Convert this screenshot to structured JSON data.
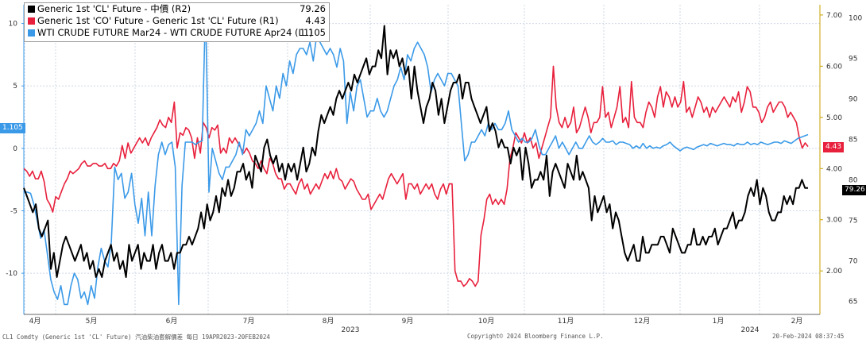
{
  "chart_data": {
    "type": "line",
    "x_axis": {
      "month_labels": [
        "4月",
        "5月",
        "6月",
        "7月",
        "8月",
        "9月",
        "10月",
        "11月",
        "12月",
        "1月",
        "2月"
      ],
      "year_labels": [
        "2023",
        "2024"
      ]
    },
    "left_axis": {
      "ticks": [
        10,
        5,
        0,
        -5,
        -10
      ],
      "ylim": [
        -13.3,
        11.5
      ]
    },
    "right_axis_r1": {
      "ticks": [
        100,
        95,
        90,
        85,
        80,
        75,
        70,
        65
      ],
      "ylim": [
        63.4,
        101.6
      ]
    },
    "right_axis_r2": {
      "ticks": [
        "7.00",
        "6.00",
        "5.00",
        "4.00",
        "3.00",
        "2.00"
      ],
      "ylim": [
        1.15,
        7.2
      ]
    },
    "series": [
      {
        "name": "Generic 1st 'CL' Future - 中價 (R2)",
        "legend_value": "79.26",
        "axis": "r1",
        "color": "#000000",
        "values": [
          79,
          78,
          77,
          76,
          77,
          74,
          73,
          74,
          75,
          69,
          71,
          68,
          70,
          72,
          73,
          72,
          71,
          70,
          71,
          72,
          70,
          71,
          69,
          70,
          68,
          69,
          68,
          70,
          71,
          72,
          70,
          71,
          69,
          70,
          68,
          72,
          70,
          71,
          72,
          69,
          71,
          70,
          70,
          72,
          69,
          71,
          72,
          70,
          70,
          71,
          69,
          71,
          71,
          72,
          72,
          73,
          72,
          73,
          74,
          76,
          74,
          77,
          75,
          76,
          78,
          76,
          79,
          78,
          80,
          78,
          79,
          81,
          81,
          82,
          80,
          81,
          79,
          83,
          82,
          81,
          84,
          85,
          83,
          82,
          83,
          81,
          82,
          80,
          82,
          81,
          82,
          80,
          82,
          84,
          81,
          82,
          84,
          83,
          86,
          88,
          87,
          88,
          89,
          88,
          90,
          91,
          90,
          91,
          92,
          91,
          93,
          92,
          93,
          94,
          95,
          93,
          94,
          94,
          96,
          95,
          99,
          93,
          96,
          95,
          96,
          94,
          95,
          93,
          94,
          90,
          94,
          91,
          89,
          87,
          89,
          90,
          92,
          91,
          88,
          90,
          87,
          89,
          91,
          92,
          92,
          93,
          90,
          92,
          92,
          90,
          89,
          88,
          87,
          88,
          89,
          86,
          87,
          86,
          84,
          85,
          84,
          84,
          82,
          84,
          83,
          84,
          80,
          84,
          82,
          79,
          80,
          80,
          81,
          80,
          83,
          78,
          81,
          82,
          81,
          80,
          79,
          82,
          81,
          80,
          83,
          80,
          81,
          80,
          79,
          75,
          78,
          76,
          77,
          78,
          76,
          77,
          74,
          76,
          75,
          73,
          71,
          70,
          71,
          72,
          70,
          70,
          73,
          71,
          71,
          72,
          72,
          72,
          73,
          73,
          72,
          71,
          74,
          73,
          72,
          71,
          71,
          72,
          72,
          74,
          72,
          72,
          73,
          72,
          73,
          73,
          74,
          72,
          73,
          74,
          74,
          75,
          76,
          74,
          75,
          75,
          76,
          78,
          79,
          78,
          80,
          77,
          79,
          78,
          76,
          75,
          75,
          76,
          76,
          78,
          77,
          78,
          77,
          79,
          79,
          80,
          79,
          79
        ]
      },
      {
        "name": "Generic 1st 'CO' Future - Generic 1st 'CL' Future (R1)",
        "legend_value": "4.43",
        "axis": "r2",
        "color": "#e8203c",
        "values": [
          4.0,
          3.95,
          3.85,
          3.95,
          3.8,
          3.8,
          3.95,
          3.75,
          3.4,
          3.3,
          3.15,
          3.45,
          3.4,
          3.55,
          3.7,
          3.8,
          3.95,
          3.9,
          3.95,
          4.0,
          4.1,
          4.15,
          4.05,
          4.05,
          4.1,
          4.1,
          4.05,
          4.05,
          4.1,
          4.0,
          4.0,
          4.1,
          4.05,
          4.15,
          4.45,
          4.2,
          4.5,
          4.3,
          4.4,
          4.5,
          4.6,
          4.5,
          4.6,
          4.45,
          4.6,
          4.7,
          4.8,
          4.95,
          4.85,
          4.8,
          5.0,
          4.9,
          5.3,
          4.4,
          4.7,
          4.65,
          4.8,
          4.75,
          4.6,
          4.2,
          4.6,
          4.3,
          4.9,
          4.8,
          4.6,
          4.8,
          4.75,
          4.85,
          4.3,
          4.4,
          4.3,
          4.6,
          4.5,
          4.6,
          4.5,
          4.4,
          4.3,
          4.4,
          4.3,
          4.15,
          4.1,
          4.0,
          4.15,
          4.0,
          3.9,
          4.2,
          4.1,
          3.9,
          3.8,
          3.8,
          3.6,
          3.7,
          3.7,
          3.6,
          3.5,
          3.7,
          3.8,
          3.6,
          3.7,
          3.5,
          3.6,
          3.7,
          3.6,
          3.75,
          3.9,
          3.8,
          3.95,
          3.8,
          4.0,
          3.8,
          3.75,
          3.6,
          3.7,
          3.8,
          3.75,
          3.6,
          3.5,
          3.4,
          3.4,
          3.5,
          3.2,
          3.3,
          3.4,
          3.5,
          3.4,
          3.6,
          3.8,
          3.9,
          3.8,
          3.7,
          3.8,
          3.9,
          3.4,
          3.7,
          3.7,
          3.6,
          3.7,
          3.5,
          3.6,
          3.7,
          3.6,
          3.7,
          3.5,
          3.4,
          3.6,
          3.7,
          3.5,
          3.7,
          3.7,
          2.0,
          1.8,
          1.8,
          1.7,
          1.75,
          1.85,
          1.8,
          1.7,
          1.8,
          2.7,
          3.0,
          3.4,
          3.5,
          3.3,
          3.4,
          3.3,
          3.4,
          3.3,
          3.6,
          4.2,
          4.4,
          4.7,
          4.6,
          4.5,
          4.7,
          4.5,
          4.6,
          4.4,
          4.5,
          4.2,
          4.4,
          4.6,
          4.8,
          5.0,
          6.0,
          5.2,
          4.9,
          4.8,
          5.0,
          4.8,
          4.9,
          5.2,
          4.7,
          4.8,
          5.0,
          5.2,
          5.0,
          4.7,
          4.9,
          4.9,
          5.0,
          5.6,
          5.0,
          5.1,
          4.8,
          5.0,
          5.2,
          5.6,
          4.9,
          5.0,
          4.8,
          5.7,
          5.0,
          4.9,
          4.9,
          4.8,
          5.1,
          5.3,
          5.2,
          5.0,
          5.4,
          5.6,
          5.2,
          5.5,
          5.4,
          5.2,
          5.4,
          5.2,
          5.3,
          5.7,
          5.1,
          5.2,
          5.0,
          5.2,
          5.4,
          5.3,
          5.1,
          5.2,
          5.0,
          5.2,
          5.1,
          5.2,
          5.3,
          5.4,
          5.3,
          5.2,
          5.4,
          5.3,
          5.5,
          5.1,
          5.3,
          5.6,
          5.5,
          5.2,
          5.2,
          5.1,
          4.9,
          5.0,
          5.2,
          5.3,
          5.1,
          5.2,
          5.3,
          5.3,
          5.2,
          5.0,
          5.1,
          5.0,
          4.9,
          4.6,
          4.4,
          4.5,
          4.43
        ]
      },
      {
        "name": "WTI CRUDE FUTURE Mar24 - WTI CRUDE FUTURE Apr24 (L1)",
        "legend_value": "1.105",
        "axis": "left",
        "color": "#3b9ae8",
        "values": [
          -3.5,
          -3.5,
          -3.6,
          -4.5,
          -5.8,
          -7.2,
          -6.5,
          -8.5,
          -10.5,
          -11.5,
          -12.1,
          -11.0,
          -12.5,
          -12.5,
          -11.0,
          -10.0,
          -10.5,
          -12.0,
          -11.5,
          -12.5,
          -11.0,
          -12.0,
          -9.5,
          -8.0,
          -9.0,
          -9.5,
          -7.5,
          -1.5,
          -2.5,
          -2.0,
          -4.0,
          -3.5,
          -2.0,
          -4.5,
          -6.0,
          -4.0,
          -7.0,
          -3.5,
          -7.0,
          -3.0,
          -0.5,
          0.5,
          -0.5,
          0.3,
          0.5,
          -1.5,
          -12.5,
          -3.0,
          0.5,
          0.5,
          0.5,
          0.3,
          0.5,
          0.6,
          11.5,
          -3.5,
          0.0,
          -1.0,
          -2.0,
          -2.5,
          -1.5,
          -1.5,
          -1.0,
          -0.5,
          0.5,
          -0.5,
          1.5,
          1.0,
          1.5,
          2.0,
          3.0,
          2.0,
          5.0,
          4.0,
          3.0,
          5.0,
          4.0,
          6.0,
          5.0,
          7.0,
          6.0,
          7.5,
          8.0,
          8.0,
          7.5,
          8.5,
          7.0,
          9.0,
          8.5,
          8.0,
          7.5,
          8.0,
          7.5,
          6.5,
          8.0,
          7.0,
          2.0,
          4.5,
          3.0,
          5.0,
          5.5,
          4.0,
          2.5,
          3.0,
          3.0,
          4.0,
          3.0,
          2.5,
          3.0,
          4.0,
          5.0,
          5.5,
          6.5,
          5.5,
          7.5,
          7.0,
          8.0,
          8.5,
          8.0,
          7.5,
          6.5,
          4.5,
          5.5,
          6.0,
          5.5,
          5.0,
          6.0,
          6.0,
          5.5,
          5.0,
          2.0,
          -1.0,
          -0.5,
          0.5,
          0.5,
          1.0,
          1.5,
          1.0,
          2.0,
          1.5,
          2.0,
          1.5,
          1.5,
          2.0,
          3.0,
          1.5,
          1.0,
          0.5,
          0.8,
          0.5,
          0.5,
          0.8,
          1.5,
          0.3,
          -0.5,
          -0.5,
          0.0,
          0.5,
          1.0,
          0.0,
          0.5,
          0.0,
          -0.5,
          0.0,
          0.5,
          0.0,
          0.0,
          0.5,
          1.0,
          0.5,
          0.3,
          0.5,
          0.8,
          0.5,
          0.5,
          0.6,
          0.3,
          0.5,
          0.5,
          0.4,
          0.3,
          0.0,
          0.2,
          0.0,
          0.4,
          0.0,
          0.2,
          0.0,
          0.1,
          0.0,
          0.2,
          0.3,
          0.5,
          0.2,
          0.0,
          -0.2,
          0.0,
          0.1,
          0.0,
          -0.1,
          0.1,
          0.2,
          0.3,
          0.2,
          0.4,
          0.3,
          0.2,
          0.3,
          0.4,
          0.3,
          0.3,
          0.2,
          0.4,
          0.3,
          0.3,
          0.5,
          0.3,
          0.4,
          0.3,
          0.5,
          0.4,
          0.3,
          0.4,
          0.5,
          0.5,
          0.4,
          0.6,
          0.5,
          0.4,
          0.6,
          0.8,
          0.9,
          1.0,
          1.105
        ]
      }
    ]
  },
  "legend": [
    {
      "name": "Generic 1st 'CL' Future - 中價 (R2)",
      "value": "79.26",
      "color": "#000000"
    },
    {
      "name": "Generic 1st 'CO' Future - Generic 1st 'CL' Future (R1)",
      "value": "4.43",
      "color": "#e8203c"
    },
    {
      "name": "WTI CRUDE FUTURE Mar24 - WTI CRUDE FUTURE Apr24 (L1)",
      "value": "1.105",
      "color": "#3b9ae8"
    }
  ],
  "tags": {
    "left": "1.105",
    "red": "4.43",
    "black": "79.26"
  },
  "footer": {
    "left": "CL1 Comdty (Generic 1st 'CL' Future) 汽油柴油套解價差  每日 19APR2023-20FEB2024",
    "center": "Copyright© 2024 Bloomberg Finance L.P.",
    "right": "20-Feb-2024 08:37:45"
  },
  "colors": {
    "grid": "#cfd8e6",
    "left_axis": "#3b9ae8",
    "right_axis": "#c8a200",
    "tag_blue": "#3b9ae8",
    "tag_red": "#e8203c",
    "tag_black": "#000000"
  }
}
